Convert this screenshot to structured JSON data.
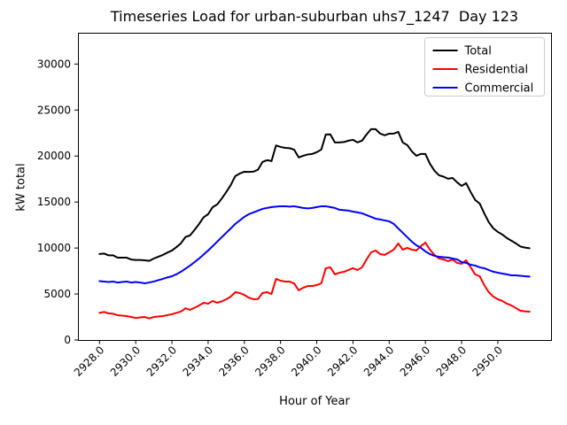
{
  "chart_data": {
    "type": "line",
    "title": "Timeseries Load for urban-suburban uhs7_1247  Day 123",
    "xlabel": "Hour of Year",
    "ylabel": "kW total",
    "xlim": [
      2926.81,
      2952.94
    ],
    "ylim": [
      0,
      33400
    ],
    "xticks": [
      2928,
      2930,
      2932,
      2934,
      2936,
      2938,
      2940,
      2942,
      2944,
      2946,
      2948,
      2950
    ],
    "xtick_labels": [
      "2928.0",
      "2930.0",
      "2932.0",
      "2934.0",
      "2936.0",
      "2938.0",
      "2940.0",
      "2942.0",
      "2944.0",
      "2946.0",
      "2948.0",
      "2950.0"
    ],
    "yticks": [
      0,
      5000,
      10000,
      15000,
      20000,
      25000,
      30000
    ],
    "ytick_labels": [
      "0",
      "5000",
      "10000",
      "15000",
      "20000",
      "25000",
      "30000"
    ],
    "grid": false,
    "legend": {
      "position": "upper right"
    },
    "x": [
      2928.0,
      2928.25,
      2928.5,
      2928.75,
      2929.0,
      2929.25,
      2929.5,
      2929.75,
      2930.0,
      2930.25,
      2930.5,
      2930.75,
      2931.0,
      2931.25,
      2931.5,
      2931.75,
      2932.0,
      2932.25,
      2932.5,
      2932.75,
      2933.0,
      2933.25,
      2933.5,
      2933.75,
      2934.0,
      2934.25,
      2934.5,
      2934.75,
      2935.0,
      2935.25,
      2935.5,
      2935.75,
      2936.0,
      2936.25,
      2936.5,
      2936.75,
      2937.0,
      2937.25,
      2937.5,
      2937.75,
      2938.0,
      2938.25,
      2938.5,
      2938.75,
      2939.0,
      2939.25,
      2939.5,
      2939.75,
      2940.0,
      2940.25,
      2940.5,
      2940.75,
      2941.0,
      2941.25,
      2941.5,
      2941.75,
      2942.0,
      2942.25,
      2942.5,
      2942.75,
      2943.0,
      2943.25,
      2943.5,
      2943.75,
      2944.0,
      2944.25,
      2944.5,
      2944.75,
      2945.0,
      2945.25,
      2945.5,
      2945.75,
      2946.0,
      2946.25,
      2946.5,
      2946.75,
      2947.0,
      2947.25,
      2947.5,
      2947.75,
      2948.0,
      2948.25,
      2948.5,
      2948.75,
      2949.0,
      2949.25,
      2949.5,
      2949.75,
      2950.0,
      2950.25,
      2950.5,
      2950.75,
      2951.0,
      2951.25,
      2951.5,
      2951.75
    ],
    "series": [
      {
        "name": "Total",
        "color": "#000000",
        "values": [
          9350,
          9400,
          9200,
          9200,
          8950,
          8950,
          8950,
          8750,
          8700,
          8700,
          8660,
          8600,
          8860,
          9050,
          9250,
          9500,
          9730,
          10100,
          10520,
          11200,
          11370,
          11970,
          12610,
          13340,
          13680,
          14440,
          14740,
          15370,
          16080,
          16850,
          17820,
          18100,
          18290,
          18280,
          18300,
          18510,
          19350,
          19550,
          19450,
          21150,
          20990,
          20890,
          20850,
          20690,
          19850,
          20030,
          20170,
          20220,
          20420,
          20700,
          22340,
          22350,
          21480,
          21480,
          21520,
          21670,
          21760,
          21480,
          21670,
          22340,
          22920,
          22920,
          22440,
          22250,
          22430,
          22440,
          22630,
          21470,
          21190,
          20510,
          20030,
          20230,
          20220,
          19160,
          18400,
          17910,
          17760,
          17530,
          17620,
          17140,
          16750,
          17050,
          16080,
          15220,
          14830,
          13770,
          12810,
          12140,
          11750,
          11460,
          11080,
          10790,
          10500,
          10160,
          10050,
          9970
        ]
      },
      {
        "name": "Residential",
        "color": "#ff0000",
        "values": [
          2950,
          3050,
          2900,
          2850,
          2700,
          2650,
          2600,
          2500,
          2400,
          2450,
          2500,
          2350,
          2500,
          2550,
          2600,
          2700,
          2800,
          2950,
          3100,
          3450,
          3280,
          3500,
          3750,
          4050,
          3950,
          4240,
          4050,
          4200,
          4430,
          4720,
          5200,
          5100,
          4900,
          4600,
          4430,
          4450,
          5100,
          5200,
          5000,
          6650,
          6450,
          6350,
          6350,
          6150,
          5400,
          5680,
          5870,
          5870,
          5970,
          6160,
          7800,
          7900,
          7130,
          7320,
          7410,
          7610,
          7800,
          7610,
          7900,
          8760,
          9530,
          9730,
          9340,
          9250,
          9530,
          9820,
          10500,
          9820,
          10020,
          9820,
          9730,
          10210,
          10590,
          9820,
          9250,
          8860,
          8760,
          8570,
          8760,
          8380,
          8280,
          8670,
          7900,
          7130,
          6930,
          5970,
          5200,
          4720,
          4430,
          4240,
          3950,
          3760,
          3470,
          3180,
          3120,
          3080
        ]
      },
      {
        "name": "Commercial",
        "color": "#0000ff",
        "values": [
          6400,
          6350,
          6300,
          6350,
          6250,
          6300,
          6350,
          6250,
          6300,
          6250,
          6160,
          6250,
          6360,
          6500,
          6650,
          6800,
          6930,
          7150,
          7420,
          7750,
          8090,
          8470,
          8860,
          9290,
          9730,
          10200,
          10690,
          11170,
          11650,
          12130,
          12620,
          13000,
          13390,
          13680,
          13870,
          14060,
          14250,
          14350,
          14450,
          14500,
          14540,
          14540,
          14500,
          14540,
          14450,
          14350,
          14300,
          14350,
          14450,
          14540,
          14540,
          14450,
          14350,
          14160,
          14110,
          14060,
          13960,
          13870,
          13770,
          13580,
          13390,
          13190,
          13100,
          13000,
          12900,
          12620,
          12130,
          11650,
          11170,
          10690,
          10300,
          10020,
          9630,
          9340,
          9150,
          9050,
          9000,
          8960,
          8860,
          8760,
          8470,
          8380,
          8180,
          8090,
          7900,
          7800,
          7610,
          7420,
          7320,
          7220,
          7130,
          7030,
          7030,
          6980,
          6930,
          6890
        ]
      }
    ]
  }
}
